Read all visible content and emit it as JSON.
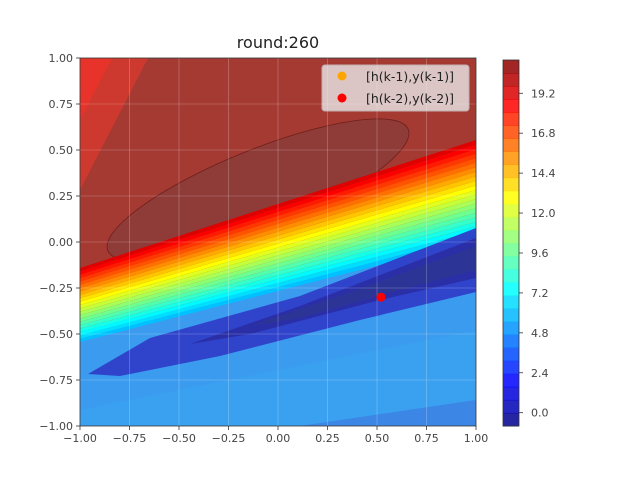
{
  "chart_data": {
    "type": "contour",
    "title": "round:260",
    "xlabel": "",
    "ylabel": "",
    "xlim": [
      -1.0,
      1.0
    ],
    "ylim": [
      -1.0,
      1.0
    ],
    "grid": true,
    "x_ticks": [
      "−1.00",
      "−0.75",
      "−0.50",
      "−0.25",
      "0.00",
      "0.25",
      "0.50",
      "0.75",
      "1.00"
    ],
    "y_ticks": [
      "−1.00",
      "−0.75",
      "−0.50",
      "−0.25",
      "0.00",
      "0.25",
      "0.50",
      "0.75",
      "1.00"
    ],
    "x_tick_values": [
      -1.0,
      -0.75,
      -0.5,
      -0.25,
      0.0,
      0.25,
      0.5,
      0.75,
      1.0
    ],
    "y_tick_values": [
      -1.0,
      -0.75,
      -0.5,
      -0.25,
      0.0,
      0.25,
      0.5,
      0.75,
      1.0
    ],
    "colorbar": {
      "colormap": "jet",
      "range": [
        -0.8,
        21.2
      ],
      "ticks": [
        "0.0",
        "2.4",
        "4.8",
        "7.2",
        "9.6",
        "12.0",
        "14.4",
        "16.8",
        "19.2"
      ],
      "tick_values": [
        0.0,
        2.4,
        4.8,
        7.2,
        9.6,
        12.0,
        14.4,
        16.8,
        19.2
      ]
    },
    "legend": {
      "placement": "top-right",
      "entries": [
        {
          "label": "[h(k-1),y(k-1)]",
          "color": "#ffa500"
        },
        {
          "label": "[h(k-2),y(k-2)]",
          "color": "#ff0000"
        }
      ]
    },
    "points": [
      {
        "series": "[h(k-2),y(k-2)]",
        "x": 0.52,
        "y": -0.3,
        "color": "#ff0000"
      }
    ]
  }
}
